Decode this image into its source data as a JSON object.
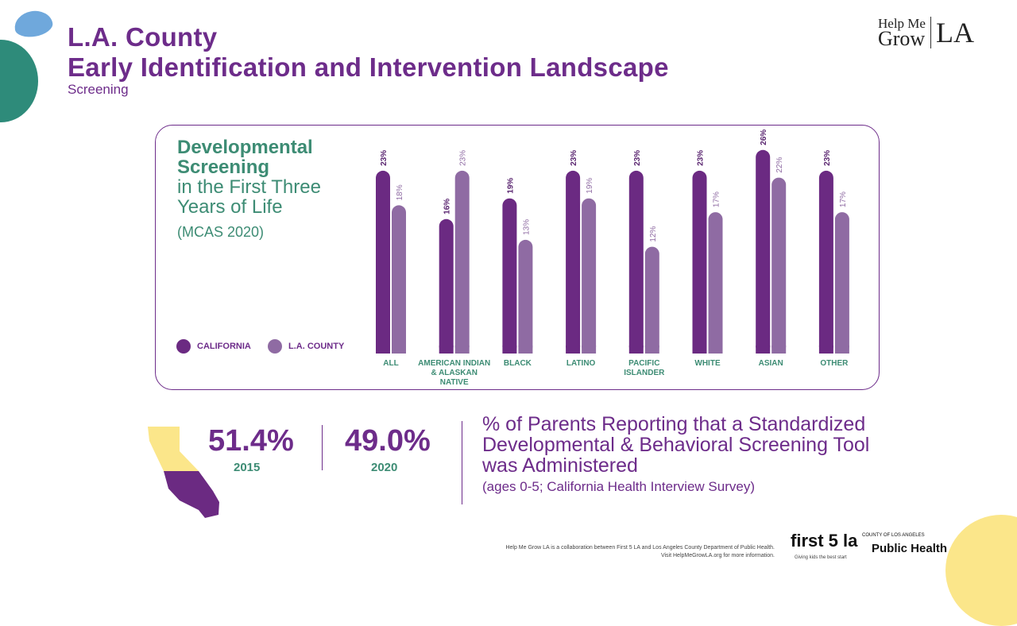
{
  "header": {
    "title_line1": "L.A. County",
    "title_line2": "Early Identification and Intervention Landscape",
    "subtitle": "Screening",
    "logo_text": "Help Me Grow LA"
  },
  "chart_data": {
    "type": "bar",
    "title_bold": "Developmental Screening",
    "title_rest": "in the First Three Years of Life",
    "note": "(MCAS 2020)",
    "categories": [
      "ALL",
      "AMERICAN INDIAN & ALASKAN NATIVE",
      "BLACK",
      "LATINO",
      "PACIFIC ISLANDER",
      "WHITE",
      "ASIAN",
      "OTHER"
    ],
    "series": [
      {
        "name": "CALIFORNIA",
        "color": "#6b2a82",
        "values": [
          23,
          16,
          19,
          23,
          23,
          23,
          26,
          23
        ]
      },
      {
        "name": "L.A. COUNTY",
        "color": "#8f6ba3",
        "values": [
          18,
          23,
          13,
          19,
          12,
          17,
          22,
          17
        ]
      }
    ],
    "value_format": "%",
    "legend": "bottom-left"
  },
  "stats": {
    "items": [
      {
        "value": "51.4%",
        "year": "2015"
      },
      {
        "value": "49.0%",
        "year": "2020"
      }
    ],
    "description": "% of Parents Reporting that a Standardized Developmental & Behavioral Screening Tool was Administered",
    "source": "(ages 0-5; California Health Interview Survey)",
    "map_colors": {
      "top": "#fbe68a",
      "bottom": "#6b2a82"
    }
  },
  "footer": {
    "line1": "Help Me Grow LA is a collaboration between First 5 LA and Los Angeles County Department of Public Health.",
    "line2": "Visit HelpMeGrowLA.org for more information.",
    "first5_logo": "first 5 la",
    "first5_tagline": "Giving kids the best start",
    "ph_top": "COUNTY OF LOS ANGELES",
    "ph_main": "Public Health"
  }
}
